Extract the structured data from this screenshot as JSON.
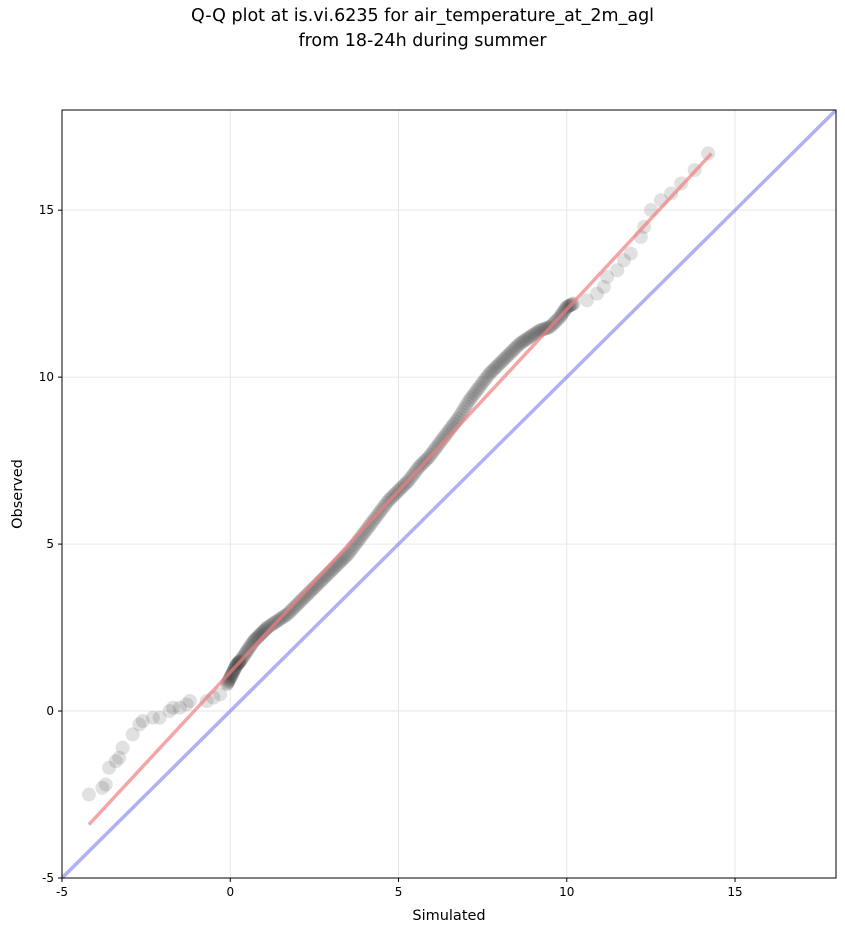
{
  "chart_data": {
    "type": "scatter",
    "title_lines": [
      "Q-Q plot at is.vi.6235 for air_temperature_at_2m_agl",
      "from 18-24h during summer"
    ],
    "xlabel": "Simulated",
    "ylabel": "Observed",
    "xlim": [
      -5,
      18
    ],
    "ylim": [
      -5,
      18
    ],
    "xticks": [
      -5,
      0,
      5,
      10,
      15
    ],
    "yticks": [
      -5,
      0,
      5,
      10,
      15
    ],
    "grid": true,
    "colors": {
      "points": "#333333",
      "fit_line": "#f08080",
      "identity_line": "#7b7bef",
      "grid": "#e6e6e6"
    },
    "series": [
      {
        "kind": "quantile_points",
        "points": [
          [
            -4.2,
            -2.5
          ],
          [
            -3.8,
            -2.3
          ],
          [
            -3.7,
            -2.2
          ],
          [
            -3.6,
            -1.7
          ],
          [
            -3.4,
            -1.5
          ],
          [
            -3.3,
            -1.4
          ],
          [
            -3.2,
            -1.1
          ],
          [
            -2.9,
            -0.7
          ],
          [
            -2.7,
            -0.4
          ],
          [
            -2.6,
            -0.3
          ],
          [
            -2.3,
            -0.2
          ],
          [
            -2.1,
            -0.2
          ],
          [
            -1.8,
            0.0
          ],
          [
            -1.7,
            0.1
          ],
          [
            -1.5,
            0.1
          ],
          [
            -1.3,
            0.2
          ],
          [
            -1.2,
            0.3
          ],
          [
            -0.7,
            0.3
          ],
          [
            -0.5,
            0.4
          ],
          [
            -0.3,
            0.5
          ],
          [
            -0.1,
            0.8
          ],
          [
            0.0,
            1.0
          ],
          [
            0.1,
            1.2
          ],
          [
            0.2,
            1.4
          ],
          [
            0.3,
            1.5
          ],
          [
            0.5,
            1.8
          ],
          [
            0.7,
            2.1
          ],
          [
            0.9,
            2.3
          ],
          [
            1.1,
            2.5
          ],
          [
            1.4,
            2.7
          ],
          [
            1.7,
            2.9
          ],
          [
            2.0,
            3.2
          ],
          [
            2.3,
            3.5
          ],
          [
            2.6,
            3.8
          ],
          [
            2.9,
            4.1
          ],
          [
            3.2,
            4.4
          ],
          [
            3.5,
            4.7
          ],
          [
            3.8,
            5.1
          ],
          [
            4.1,
            5.5
          ],
          [
            4.4,
            5.9
          ],
          [
            4.7,
            6.3
          ],
          [
            5.0,
            6.6
          ],
          [
            5.3,
            6.9
          ],
          [
            5.6,
            7.3
          ],
          [
            5.9,
            7.6
          ],
          [
            6.2,
            8.0
          ],
          [
            6.5,
            8.4
          ],
          [
            6.8,
            8.8
          ],
          [
            7.1,
            9.3
          ],
          [
            7.4,
            9.7
          ],
          [
            7.7,
            10.1
          ],
          [
            8.0,
            10.4
          ],
          [
            8.3,
            10.7
          ],
          [
            8.6,
            11.0
          ],
          [
            8.9,
            11.2
          ],
          [
            9.2,
            11.4
          ],
          [
            9.5,
            11.5
          ],
          [
            9.8,
            11.8
          ],
          [
            10.0,
            12.1
          ],
          [
            10.2,
            12.2
          ],
          [
            10.6,
            12.3
          ],
          [
            10.9,
            12.5
          ],
          [
            11.1,
            12.7
          ],
          [
            11.2,
            13.0
          ],
          [
            11.5,
            13.2
          ],
          [
            11.7,
            13.5
          ],
          [
            11.9,
            13.7
          ],
          [
            12.2,
            14.2
          ],
          [
            12.3,
            14.5
          ],
          [
            12.5,
            15.0
          ],
          [
            12.8,
            15.3
          ],
          [
            13.1,
            15.5
          ],
          [
            13.4,
            15.8
          ],
          [
            13.8,
            16.2
          ],
          [
            14.2,
            16.7
          ]
        ]
      },
      {
        "kind": "fit_line",
        "points": [
          [
            -4.2,
            -3.4
          ],
          [
            14.3,
            16.7
          ]
        ]
      },
      {
        "kind": "identity_line",
        "points": [
          [
            -5,
            -5
          ],
          [
            18,
            18
          ]
        ]
      }
    ]
  }
}
